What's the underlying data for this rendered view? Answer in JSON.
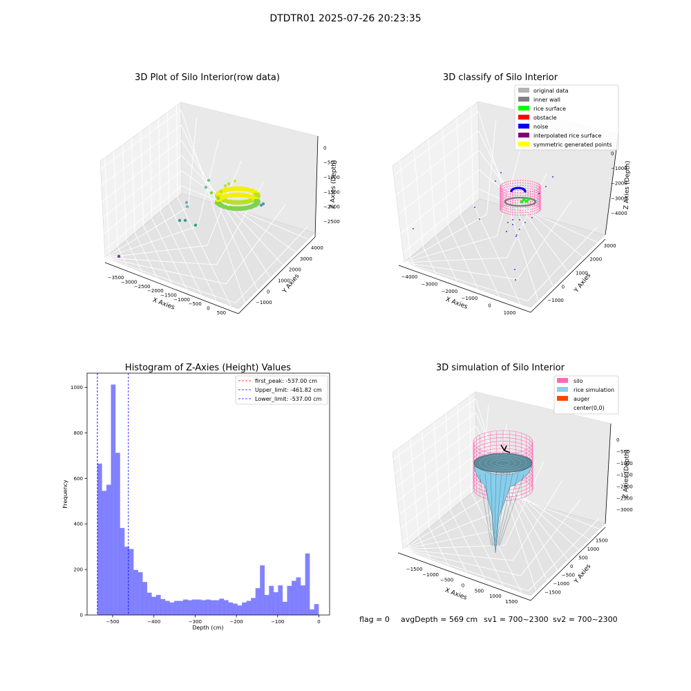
{
  "suptitle": "DTDTR01 2025-07-26 20:23:35",
  "footer": {
    "flag": "flag = 0",
    "avg_depth": "avgDepth = 569 cm",
    "sv1": "sv1 = 700~2300",
    "sv2": "sv2 = 700~2300"
  },
  "chart_data": [
    {
      "type": "scatter",
      "projection": "3d",
      "title": "3D Plot of Silo Interior(row data)",
      "xlabel": "X Axies",
      "ylabel": "Y Axies",
      "zlabel": "Z Axies (Depth)",
      "xticks": [
        "−3500",
        "−3000",
        "−2500",
        "−2000",
        "−1500",
        "−1000",
        "−500",
        "0",
        "500"
      ],
      "yticks": [
        "−1000",
        "0",
        "1000",
        "2000",
        "3000",
        "4000"
      ],
      "zticks": [
        "0",
        "−500",
        "−1000",
        "−1500",
        "−2000",
        "−2500"
      ],
      "grid": true
    },
    {
      "type": "scatter",
      "projection": "3d",
      "title": "3D classify of Silo Interior",
      "xlabel": "X Axies",
      "ylabel": "Y Axies",
      "zlabel": "Z Axies (Depth)",
      "xticks": [
        "−4000",
        "−3000",
        "−2000",
        "−1000",
        "0",
        "1000"
      ],
      "yticks": [
        "−1000",
        "0",
        "1000",
        "2000",
        "3000"
      ],
      "zticks": [
        "0",
        "−1000",
        "−2000",
        "−3000",
        "−4000"
      ],
      "legend_placement": "top-right",
      "legend": [
        {
          "label": "original data",
          "color": "#b3b3b3"
        },
        {
          "label": "inner wall",
          "color": "#808080"
        },
        {
          "label": "rice surface",
          "color": "#00ff00"
        },
        {
          "label": "obstacle",
          "color": "#ff0000"
        },
        {
          "label": "noise",
          "color": "#0000ff"
        },
        {
          "label": "interpolated rice surface",
          "color": "#800080"
        },
        {
          "label": "symmetric generated points",
          "color": "#ffff00"
        }
      ],
      "grid": true
    },
    {
      "type": "bar",
      "title": "Histogram of Z-Axies (Height) Values",
      "xlabel": "Depth (cm)",
      "ylabel": "Frequency",
      "xlim": [
        -562,
        26
      ],
      "ylim": [
        0,
        1062
      ],
      "bin_width": 10.95,
      "bin_start": -537.0,
      "values": [
        665,
        545,
        572,
        1012,
        712,
        382,
        300,
        290,
        198,
        188,
        145,
        98,
        80,
        88,
        70,
        62,
        55,
        62,
        62,
        68,
        65,
        68,
        68,
        65,
        68,
        65,
        65,
        72,
        65,
        55,
        50,
        42,
        55,
        62,
        75,
        118,
        218,
        88,
        128,
        100,
        130,
        58,
        128,
        150,
        165,
        130,
        270,
        25,
        48
      ],
      "color": "#4d4dff",
      "xticks": [
        -500,
        -400,
        -300,
        -200,
        -100,
        0
      ],
      "xticklabels": [
        "−500",
        "−400",
        "−300",
        "−200",
        "−100",
        "0"
      ],
      "yticks": [
        0,
        200,
        400,
        600,
        800,
        1000
      ],
      "lines": [
        {
          "label": "first_peak: -537.00 cm",
          "x": -537.0,
          "color": "#ff0000"
        },
        {
          "label": "Upper_limit: -461.82 cm",
          "x": -461.82,
          "color": "#0000ff"
        },
        {
          "label": "Lower_limit: -537.00 cm",
          "x": -537.0,
          "color": "#0000ff"
        }
      ],
      "legend_placement": "top-right"
    },
    {
      "type": "surface",
      "projection": "3d",
      "title": "3D simulation of Silo Interior",
      "xlabel": "X Axies",
      "ylabel": "Y Axies",
      "zlabel": "Z Axies (Depth)",
      "xticks": [
        "−1500",
        "−1000",
        "−500",
        "0",
        "500",
        "1000",
        "1500"
      ],
      "yticks": [
        "−1500",
        "−1000",
        "−500",
        "0",
        "500",
        "1000",
        "1500"
      ],
      "zticks": [
        "0",
        "−500",
        "−1000",
        "−1500",
        "−2000",
        "−2500",
        "−3000"
      ],
      "legend_placement": "top-right",
      "legend": [
        {
          "label": "silo",
          "color": "#ff69b4"
        },
        {
          "label": "rice simulation",
          "color": "#87ceeb"
        },
        {
          "label": "auger",
          "color": "#ff4500"
        },
        {
          "label": "center(0,0)",
          "color": ""
        }
      ],
      "grid": true
    }
  ]
}
